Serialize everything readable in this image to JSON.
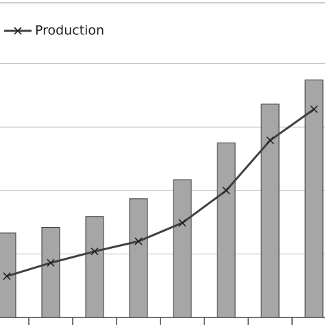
{
  "chart_data": {
    "type": "bar",
    "categories": [
      null,
      null,
      null,
      null,
      null,
      null,
      null,
      null
    ],
    "series": [
      {
        "type": "bar",
        "color": "#a6a6a6",
        "values": [
          1.33,
          1.42,
          1.59,
          1.87,
          2.17,
          2.75,
          3.36,
          3.74
        ]
      },
      {
        "type": "line",
        "name": "Production",
        "color": "#404040",
        "values": [
          0.65,
          0.86,
          1.04,
          1.2,
          1.49,
          2.0,
          2.79,
          3.28
        ]
      }
    ],
    "ylim": [
      0,
      5
    ],
    "yticks": [
      0,
      1,
      2,
      3,
      4
    ],
    "grid": true
  }
}
